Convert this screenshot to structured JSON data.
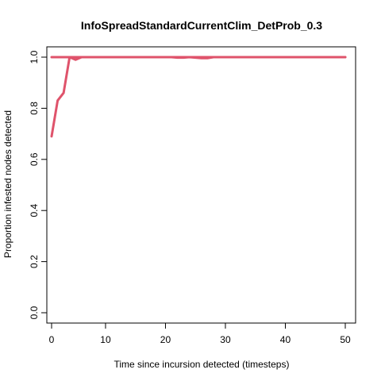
{
  "chart_data": {
    "type": "line",
    "title": "InfoSpreadStandardCurrentClim_DetProb_0.3",
    "xlabel": "Time since incursion detected (timesteps)",
    "ylabel": "Proportion infested nodes detected",
    "xlim": [
      1,
      50
    ],
    "ylim": [
      0,
      1
    ],
    "xticks": [
      0,
      10,
      20,
      30,
      40,
      50
    ],
    "yticks": [
      0.0,
      0.2,
      0.4,
      0.6,
      0.8,
      1.0
    ],
    "ytick_labels": [
      "0.0",
      "0.2",
      "0.4",
      "0.6",
      "0.8",
      "1.0"
    ],
    "grid": false,
    "legend": "none",
    "series": [
      {
        "color": "#df536b",
        "x": [
          1,
          2,
          3,
          4,
          5,
          6,
          7,
          8,
          9,
          10,
          11,
          12,
          13,
          14,
          15,
          16,
          17,
          18,
          19,
          20,
          21,
          22,
          23,
          24,
          25,
          26,
          27,
          28,
          29,
          30,
          31,
          32,
          33,
          34,
          35,
          36,
          37,
          38,
          39,
          40,
          41,
          42,
          43,
          44,
          45,
          46,
          47,
          48,
          49,
          50
        ],
        "y": [
          0.69,
          0.83,
          0.86,
          1.0,
          0.99,
          1.0,
          1.0,
          1.0,
          1.0,
          1.0,
          1.0,
          1.0,
          1.0,
          1.0,
          1.0,
          1.0,
          1.0,
          1.0,
          1.0,
          1.0,
          1.0,
          0.998,
          0.998,
          1.0,
          0.998,
          0.996,
          0.996,
          1.0,
          1.0,
          1.0,
          1.0,
          1.0,
          1.0,
          1.0,
          1.0,
          1.0,
          1.0,
          1.0,
          1.0,
          1.0,
          1.0,
          1.0,
          1.0,
          1.0,
          1.0,
          1.0,
          1.0,
          1.0,
          1.0,
          1.0
        ]
      },
      {
        "color": "#df536b",
        "x": [
          1,
          50
        ],
        "y": [
          1.0,
          1.0
        ]
      }
    ]
  }
}
